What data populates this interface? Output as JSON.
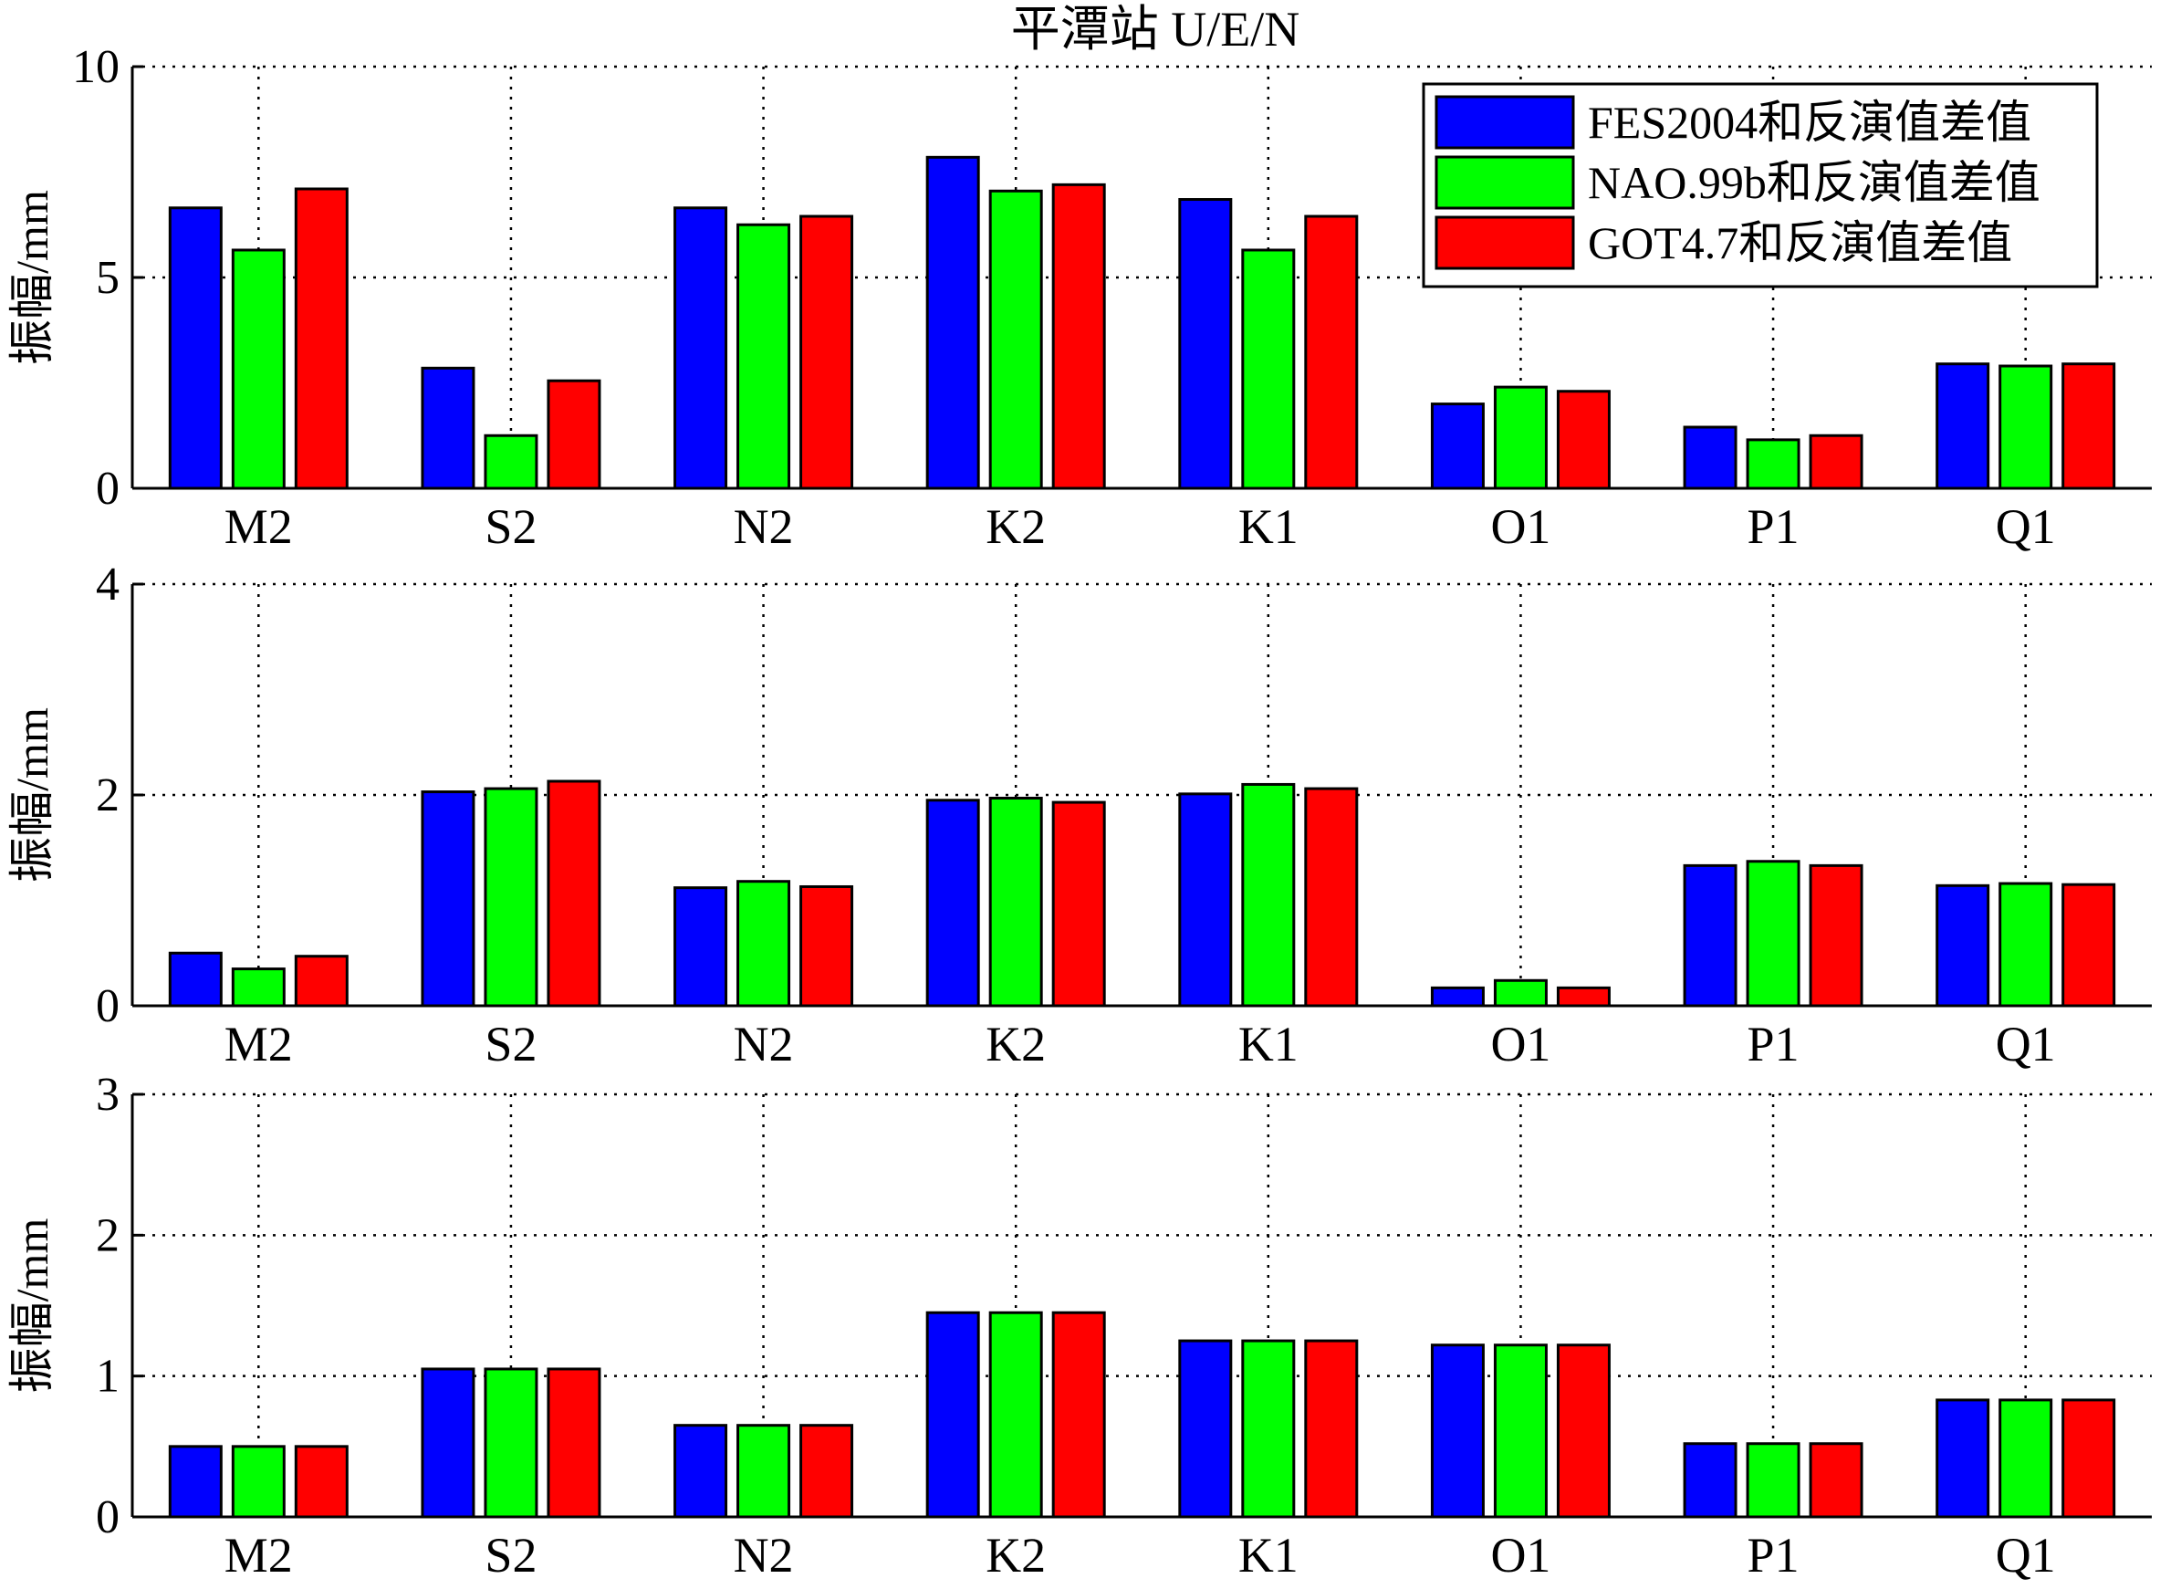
{
  "chart_data": {
    "title": "平潭站 U/E/N",
    "categories": [
      "M2",
      "S2",
      "N2",
      "K2",
      "K1",
      "O1",
      "P1",
      "Q1"
    ],
    "legend": {
      "placement": "top-right (panel 1)",
      "entries": [
        {
          "label": "FES2004和反演值差值",
          "color": "#0000ff"
        },
        {
          "label": "NAO.99b和反演值差值",
          "color": "#00ff00"
        },
        {
          "label": "GOT4.7和反演值差值",
          "color": "#ff0000"
        }
      ]
    },
    "grid": true,
    "panels": [
      {
        "type": "bar",
        "ylabel": "振幅/mm",
        "ylim": [
          0,
          10
        ],
        "yticks": [
          "0",
          "5",
          "10"
        ],
        "series": [
          {
            "name": "FES2004和反演值差值",
            "color": "#0000ff",
            "values": [
              6.65,
              2.85,
              6.65,
              7.85,
              6.85,
              2.0,
              1.45,
              2.95
            ]
          },
          {
            "name": "NAO.99b和反演值差值",
            "color": "#00ff00",
            "values": [
              5.65,
              1.25,
              6.25,
              7.05,
              5.65,
              2.4,
              1.15,
              2.9
            ]
          },
          {
            "name": "GOT4.7和反演值差值",
            "color": "#ff0000",
            "values": [
              7.1,
              2.55,
              6.45,
              7.2,
              6.45,
              2.3,
              1.25,
              2.95
            ]
          }
        ]
      },
      {
        "type": "bar",
        "ylabel": "振幅/mm",
        "ylim": [
          0,
          4
        ],
        "yticks": [
          "0",
          "2",
          "4"
        ],
        "series": [
          {
            "name": "FES2004和反演值差值",
            "color": "#0000ff",
            "values": [
              0.5,
              2.03,
              1.12,
              1.95,
              2.01,
              0.17,
              1.33,
              1.14
            ]
          },
          {
            "name": "NAO.99b和反演值差值",
            "color": "#00ff00",
            "values": [
              0.35,
              2.06,
              1.18,
              1.97,
              2.1,
              0.24,
              1.37,
              1.16
            ]
          },
          {
            "name": "GOT4.7和反演值差值",
            "color": "#ff0000",
            "values": [
              0.47,
              2.13,
              1.13,
              1.93,
              2.06,
              0.17,
              1.33,
              1.15
            ]
          }
        ]
      },
      {
        "type": "bar",
        "ylabel": "振幅/mm",
        "ylim": [
          0,
          3
        ],
        "yticks": [
          "0",
          "1",
          "2",
          "3"
        ],
        "series": [
          {
            "name": "FES2004和反演值差值",
            "color": "#0000ff",
            "values": [
              0.5,
              1.05,
              0.65,
              1.45,
              1.25,
              1.22,
              0.52,
              0.83
            ]
          },
          {
            "name": "NAO.99b和反演值差值",
            "color": "#00ff00",
            "values": [
              0.5,
              1.05,
              0.65,
              1.45,
              1.25,
              1.22,
              0.52,
              0.83
            ]
          },
          {
            "name": "GOT4.7和反演值差值",
            "color": "#ff0000",
            "values": [
              0.5,
              1.05,
              0.65,
              1.45,
              1.25,
              1.22,
              0.52,
              0.83
            ]
          }
        ]
      }
    ]
  }
}
